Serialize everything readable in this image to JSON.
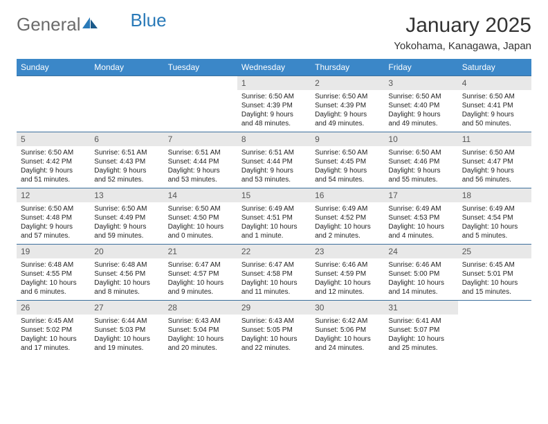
{
  "brand": {
    "part1": "General",
    "part2": "Blue"
  },
  "title": "January 2025",
  "subtitle": "Yokohama, Kanagawa, Japan",
  "colors": {
    "header_bg": "#3b87c8",
    "header_text": "#ffffff",
    "daynum_bg": "#e8e8e8",
    "cell_border": "#3b6f9c",
    "title_color": "#333333",
    "logo_gray": "#6b6b6b",
    "logo_blue": "#2a7ab8",
    "info_text": "#222222",
    "background": "#ffffff"
  },
  "fonts": {
    "title_size_pt": 22,
    "subtitle_size_pt": 11,
    "header_size_pt": 9,
    "daynum_size_pt": 9,
    "info_size_pt": 7.5
  },
  "calendar": {
    "type": "table",
    "columns": [
      "Sunday",
      "Monday",
      "Tuesday",
      "Wednesday",
      "Thursday",
      "Friday",
      "Saturday"
    ],
    "weeks": [
      [
        null,
        null,
        null,
        {
          "n": "1",
          "sunrise": "6:50 AM",
          "sunset": "4:39 PM",
          "daylight": "9 hours and 48 minutes."
        },
        {
          "n": "2",
          "sunrise": "6:50 AM",
          "sunset": "4:39 PM",
          "daylight": "9 hours and 49 minutes."
        },
        {
          "n": "3",
          "sunrise": "6:50 AM",
          "sunset": "4:40 PM",
          "daylight": "9 hours and 49 minutes."
        },
        {
          "n": "4",
          "sunrise": "6:50 AM",
          "sunset": "4:41 PM",
          "daylight": "9 hours and 50 minutes."
        }
      ],
      [
        {
          "n": "5",
          "sunrise": "6:50 AM",
          "sunset": "4:42 PM",
          "daylight": "9 hours and 51 minutes."
        },
        {
          "n": "6",
          "sunrise": "6:51 AM",
          "sunset": "4:43 PM",
          "daylight": "9 hours and 52 minutes."
        },
        {
          "n": "7",
          "sunrise": "6:51 AM",
          "sunset": "4:44 PM",
          "daylight": "9 hours and 53 minutes."
        },
        {
          "n": "8",
          "sunrise": "6:51 AM",
          "sunset": "4:44 PM",
          "daylight": "9 hours and 53 minutes."
        },
        {
          "n": "9",
          "sunrise": "6:50 AM",
          "sunset": "4:45 PM",
          "daylight": "9 hours and 54 minutes."
        },
        {
          "n": "10",
          "sunrise": "6:50 AM",
          "sunset": "4:46 PM",
          "daylight": "9 hours and 55 minutes."
        },
        {
          "n": "11",
          "sunrise": "6:50 AM",
          "sunset": "4:47 PM",
          "daylight": "9 hours and 56 minutes."
        }
      ],
      [
        {
          "n": "12",
          "sunrise": "6:50 AM",
          "sunset": "4:48 PM",
          "daylight": "9 hours and 57 minutes."
        },
        {
          "n": "13",
          "sunrise": "6:50 AM",
          "sunset": "4:49 PM",
          "daylight": "9 hours and 59 minutes."
        },
        {
          "n": "14",
          "sunrise": "6:50 AM",
          "sunset": "4:50 PM",
          "daylight": "10 hours and 0 minutes."
        },
        {
          "n": "15",
          "sunrise": "6:49 AM",
          "sunset": "4:51 PM",
          "daylight": "10 hours and 1 minute."
        },
        {
          "n": "16",
          "sunrise": "6:49 AM",
          "sunset": "4:52 PM",
          "daylight": "10 hours and 2 minutes."
        },
        {
          "n": "17",
          "sunrise": "6:49 AM",
          "sunset": "4:53 PM",
          "daylight": "10 hours and 4 minutes."
        },
        {
          "n": "18",
          "sunrise": "6:49 AM",
          "sunset": "4:54 PM",
          "daylight": "10 hours and 5 minutes."
        }
      ],
      [
        {
          "n": "19",
          "sunrise": "6:48 AM",
          "sunset": "4:55 PM",
          "daylight": "10 hours and 6 minutes."
        },
        {
          "n": "20",
          "sunrise": "6:48 AM",
          "sunset": "4:56 PM",
          "daylight": "10 hours and 8 minutes."
        },
        {
          "n": "21",
          "sunrise": "6:47 AM",
          "sunset": "4:57 PM",
          "daylight": "10 hours and 9 minutes."
        },
        {
          "n": "22",
          "sunrise": "6:47 AM",
          "sunset": "4:58 PM",
          "daylight": "10 hours and 11 minutes."
        },
        {
          "n": "23",
          "sunrise": "6:46 AM",
          "sunset": "4:59 PM",
          "daylight": "10 hours and 12 minutes."
        },
        {
          "n": "24",
          "sunrise": "6:46 AM",
          "sunset": "5:00 PM",
          "daylight": "10 hours and 14 minutes."
        },
        {
          "n": "25",
          "sunrise": "6:45 AM",
          "sunset": "5:01 PM",
          "daylight": "10 hours and 15 minutes."
        }
      ],
      [
        {
          "n": "26",
          "sunrise": "6:45 AM",
          "sunset": "5:02 PM",
          "daylight": "10 hours and 17 minutes."
        },
        {
          "n": "27",
          "sunrise": "6:44 AM",
          "sunset": "5:03 PM",
          "daylight": "10 hours and 19 minutes."
        },
        {
          "n": "28",
          "sunrise": "6:43 AM",
          "sunset": "5:04 PM",
          "daylight": "10 hours and 20 minutes."
        },
        {
          "n": "29",
          "sunrise": "6:43 AM",
          "sunset": "5:05 PM",
          "daylight": "10 hours and 22 minutes."
        },
        {
          "n": "30",
          "sunrise": "6:42 AM",
          "sunset": "5:06 PM",
          "daylight": "10 hours and 24 minutes."
        },
        {
          "n": "31",
          "sunrise": "6:41 AM",
          "sunset": "5:07 PM",
          "daylight": "10 hours and 25 minutes."
        },
        null
      ]
    ],
    "labels": {
      "sunrise_prefix": "Sunrise: ",
      "sunset_prefix": "Sunset: ",
      "daylight_prefix": "Daylight: "
    }
  }
}
